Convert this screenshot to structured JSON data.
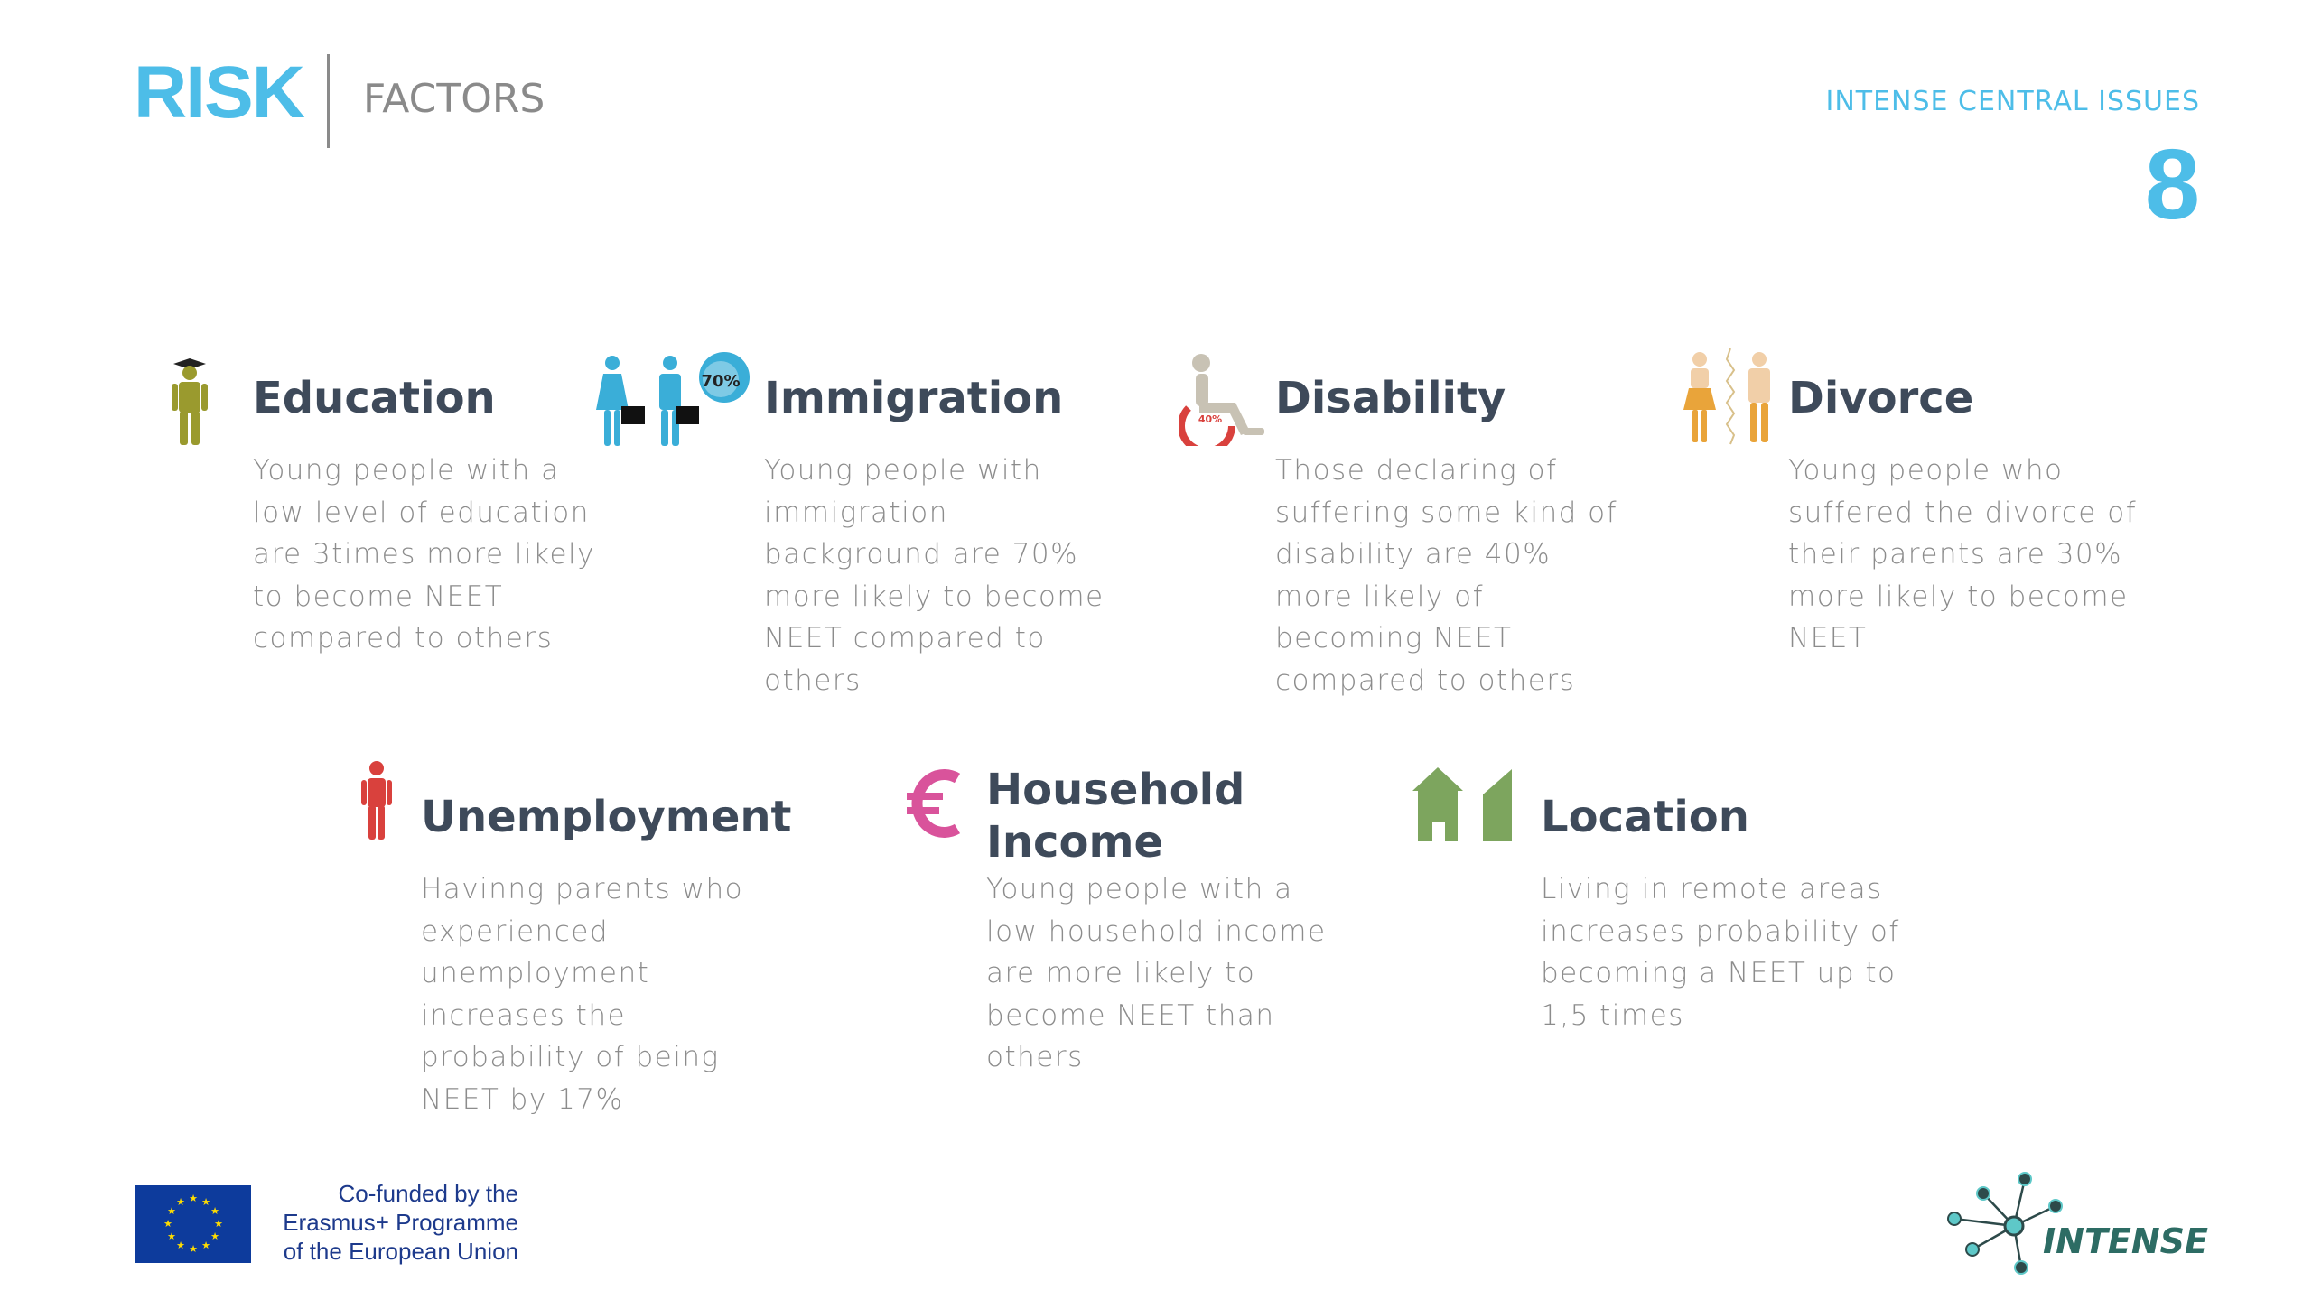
{
  "header": {
    "title_main": "RISK",
    "title_sub": "FACTORS",
    "section_label": "INTENSE CENTRAL ISSUES",
    "section_number": "8"
  },
  "factors": [
    {
      "title": "Education",
      "text": "Young people with a low level of education are 3times more likely to become NEET compared to others",
      "icon": "graduate-person-icon",
      "color": "#9a9a2e"
    },
    {
      "title": "Immigration",
      "text": "Young people with immigration background are 70% more likely to become NEET compared to others",
      "icon": "immigrants-icon",
      "color": "#3aaed8",
      "badge": "70%"
    },
    {
      "title": "Disability",
      "text": "Those declaring of suffering some kind of disability are 40% more likely of becoming NEET compared to others",
      "icon": "wheelchair-icon",
      "color": "#d9413d",
      "badge": "40%"
    },
    {
      "title": "Divorce",
      "text": "Young people who suffered the divorce of their parents are 30% more likely to become NEET",
      "icon": "split-couple-icon",
      "color": "#e9a43a"
    },
    {
      "title": "Unemployment",
      "text": "Havinng parents who experienced unemployment increases the probability of being NEET by 17%",
      "icon": "person-icon",
      "color": "#d9413d"
    },
    {
      "title": "Household Income",
      "text": "Young people with a low household income are more likely to become NEET than others",
      "icon": "euro-icon",
      "color": "#d9539b"
    },
    {
      "title": "Location",
      "text": "Living in remote areas increases probability of becoming a NEET up to 1,5 times",
      "icon": "houses-icon",
      "color": "#7da55e"
    }
  ],
  "footer": {
    "eu_line1": "Co-funded by the",
    "eu_line2": "Erasmus+ Programme",
    "eu_line3": "of the European Union",
    "logo_text": "INTENSE"
  }
}
